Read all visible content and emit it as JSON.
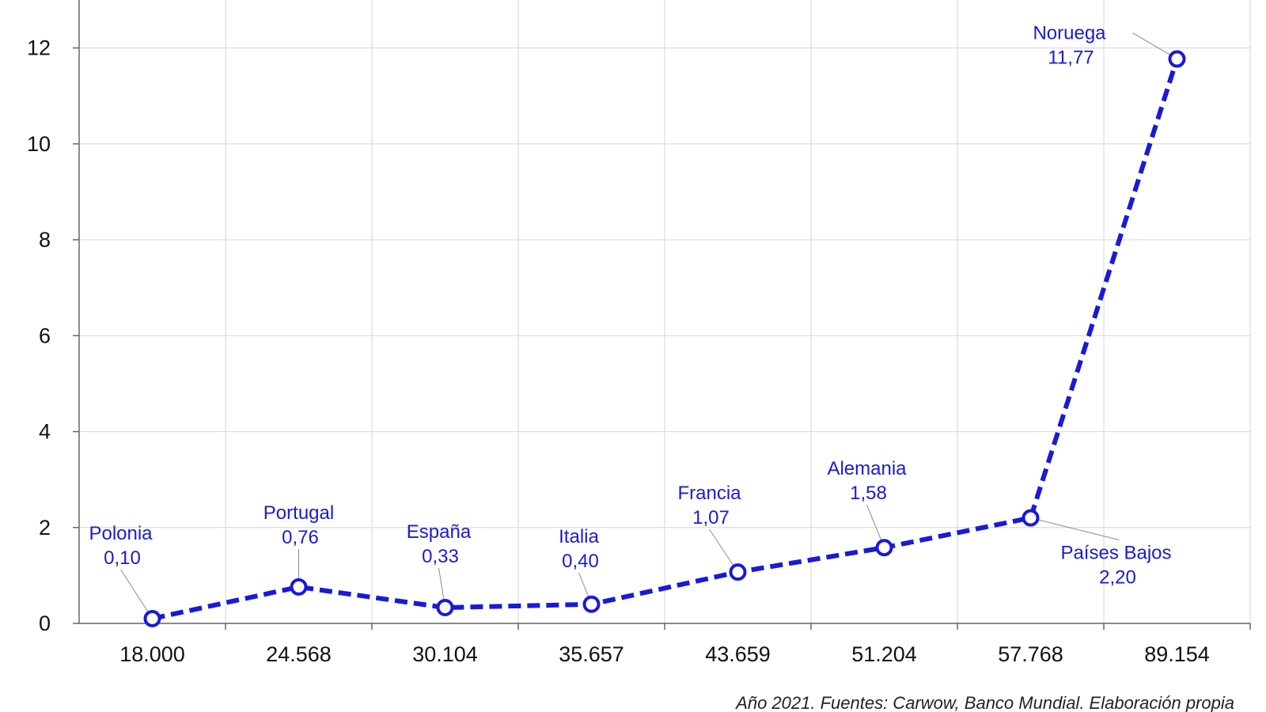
{
  "chart_data": {
    "type": "line",
    "x_categories": [
      "18.000",
      "24.568",
      "30.104",
      "35.657",
      "43.659",
      "51.204",
      "57.768",
      "89.154"
    ],
    "ylim": [
      0,
      13
    ],
    "yticks": [
      "0",
      "2",
      "4",
      "6",
      "8",
      "10",
      "12"
    ],
    "grid": true,
    "series": [
      {
        "color": "#1a1ad6",
        "points": [
          {
            "x": "18.000",
            "y": 0.1,
            "label": "Polonia",
            "value_label": "0,10"
          },
          {
            "x": "24.568",
            "y": 0.76,
            "label": "Portugal",
            "value_label": "0,76"
          },
          {
            "x": "30.104",
            "y": 0.33,
            "label": "España",
            "value_label": "0,33"
          },
          {
            "x": "35.657",
            "y": 0.4,
            "label": "Italia",
            "value_label": "0,40"
          },
          {
            "x": "43.659",
            "y": 1.07,
            "label": "Francia",
            "value_label": "1,07"
          },
          {
            "x": "51.204",
            "y": 1.58,
            "label": "Alemania",
            "value_label": "1,58"
          },
          {
            "x": "57.768",
            "y": 2.2,
            "label": "Países Bajos",
            "value_label": "2,20"
          },
          {
            "x": "89.154",
            "y": 11.77,
            "label": "Noruega",
            "value_label": "11,77"
          }
        ]
      }
    ],
    "source_note": "Año 2021. Fuentes: Carwow, Banco Mundial. Elaboración propia"
  }
}
